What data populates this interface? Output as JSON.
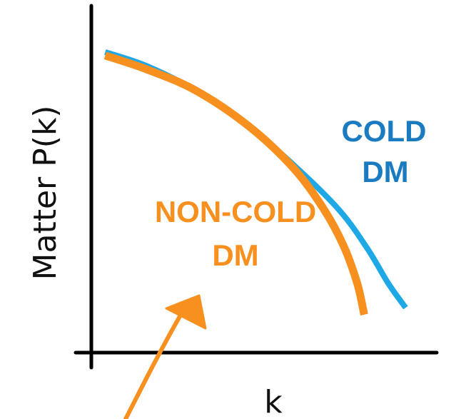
{
  "chart_data": {
    "type": "line",
    "xlabel": "k",
    "ylabel": "Matter P(k)",
    "grid": false,
    "series": [
      {
        "name": "COLD DM",
        "label_lines": [
          "COLD",
          "DM"
        ],
        "color": "#1ea8e6",
        "label_color": "#1a7bc0",
        "points": [
          [
            0.04,
            0.87
          ],
          [
            0.16,
            0.83
          ],
          [
            0.3,
            0.76
          ],
          [
            0.45,
            0.66
          ],
          [
            0.6,
            0.53
          ],
          [
            0.72,
            0.41
          ],
          [
            0.8,
            0.3
          ],
          [
            0.86,
            0.2
          ],
          [
            0.91,
            0.13
          ]
        ]
      },
      {
        "name": "NON-COLD DM",
        "label_lines": [
          "NON-COLD",
          "DM"
        ],
        "color": "#f7901e",
        "label_color": "#f7901e",
        "points": [
          [
            0.04,
            0.86
          ],
          [
            0.16,
            0.82
          ],
          [
            0.3,
            0.76
          ],
          [
            0.45,
            0.66
          ],
          [
            0.58,
            0.54
          ],
          [
            0.67,
            0.42
          ],
          [
            0.73,
            0.31
          ],
          [
            0.77,
            0.2
          ],
          [
            0.79,
            0.11
          ]
        ]
      }
    ],
    "arrow": {
      "color": "#f7901e",
      "direction": "up-right",
      "points_to": "NON-COLD DM"
    }
  }
}
